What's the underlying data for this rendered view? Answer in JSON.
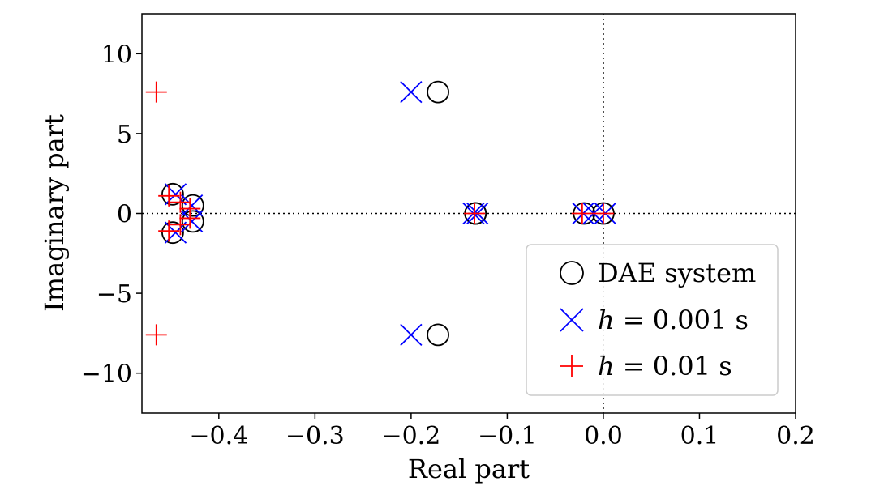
{
  "chart_data": {
    "type": "scatter",
    "title": "",
    "xlabel": "Real part",
    "ylabel": "Imaginary part",
    "xlim": [
      -0.48,
      0.2
    ],
    "ylim": [
      -12.5,
      12.5
    ],
    "xticks": [
      {
        "value": -0.4,
        "label": "−0.4"
      },
      {
        "value": -0.3,
        "label": "−0.3"
      },
      {
        "value": -0.2,
        "label": "−0.2"
      },
      {
        "value": -0.1,
        "label": "−0.1"
      },
      {
        "value": 0.0,
        "label": "0.0"
      },
      {
        "value": 0.1,
        "label": "0.1"
      },
      {
        "value": 0.2,
        "label": "0.2"
      }
    ],
    "yticks": [
      {
        "value": 10,
        "label": "10"
      },
      {
        "value": 5,
        "label": "5"
      },
      {
        "value": 0,
        "label": "0"
      },
      {
        "value": -5,
        "label": "−5"
      },
      {
        "value": -10,
        "label": "−10"
      }
    ],
    "reference_lines": {
      "x": 0,
      "y": 0,
      "style": "dotted"
    },
    "grid": false,
    "legend_position": "lower-right",
    "series": [
      {
        "name": "DAE system",
        "marker": "circle",
        "color": "#000000",
        "points": [
          {
            "x": -0.172,
            "y": 7.6
          },
          {
            "x": -0.172,
            "y": -7.6
          },
          {
            "x": -0.448,
            "y": 1.2
          },
          {
            "x": -0.448,
            "y": -1.2
          },
          {
            "x": -0.427,
            "y": 0.5
          },
          {
            "x": -0.427,
            "y": -0.5
          },
          {
            "x": -0.133,
            "y": 0.0
          },
          {
            "x": -0.133,
            "y": 0.0
          },
          {
            "x": -0.02,
            "y": 0.0
          },
          {
            "x": 0.0,
            "y": 0.0
          }
        ]
      },
      {
        "name": "h = 0.001 s",
        "name_parts": [
          "h",
          " = 0.001 s"
        ],
        "marker": "x",
        "color": "#0000ff",
        "points": [
          {
            "x": -0.2,
            "y": 7.6
          },
          {
            "x": -0.2,
            "y": -7.6
          },
          {
            "x": -0.445,
            "y": 1.2
          },
          {
            "x": -0.445,
            "y": -1.2
          },
          {
            "x": -0.428,
            "y": 0.5
          },
          {
            "x": -0.428,
            "y": -0.5
          },
          {
            "x": -0.135,
            "y": 0.0
          },
          {
            "x": -0.131,
            "y": 0.0
          },
          {
            "x": -0.021,
            "y": 0.0
          },
          {
            "x": -0.01,
            "y": 0.0
          },
          {
            "x": 0.002,
            "y": 0.0
          }
        ]
      },
      {
        "name": "h = 0.01 s",
        "name_parts": [
          "h",
          " = 0.01 s"
        ],
        "marker": "plus",
        "color": "#ff0000",
        "points": [
          {
            "x": -0.465,
            "y": 7.6
          },
          {
            "x": -0.465,
            "y": -7.6
          },
          {
            "x": -0.452,
            "y": 1.1
          },
          {
            "x": -0.452,
            "y": -1.1
          },
          {
            "x": -0.44,
            "y": 0.7
          },
          {
            "x": -0.44,
            "y": -0.7
          },
          {
            "x": -0.43,
            "y": 0.3
          },
          {
            "x": -0.43,
            "y": -0.3
          },
          {
            "x": -0.134,
            "y": 0.0
          },
          {
            "x": -0.022,
            "y": 0.0
          },
          {
            "x": 0.0,
            "y": 0.0
          }
        ]
      }
    ]
  }
}
